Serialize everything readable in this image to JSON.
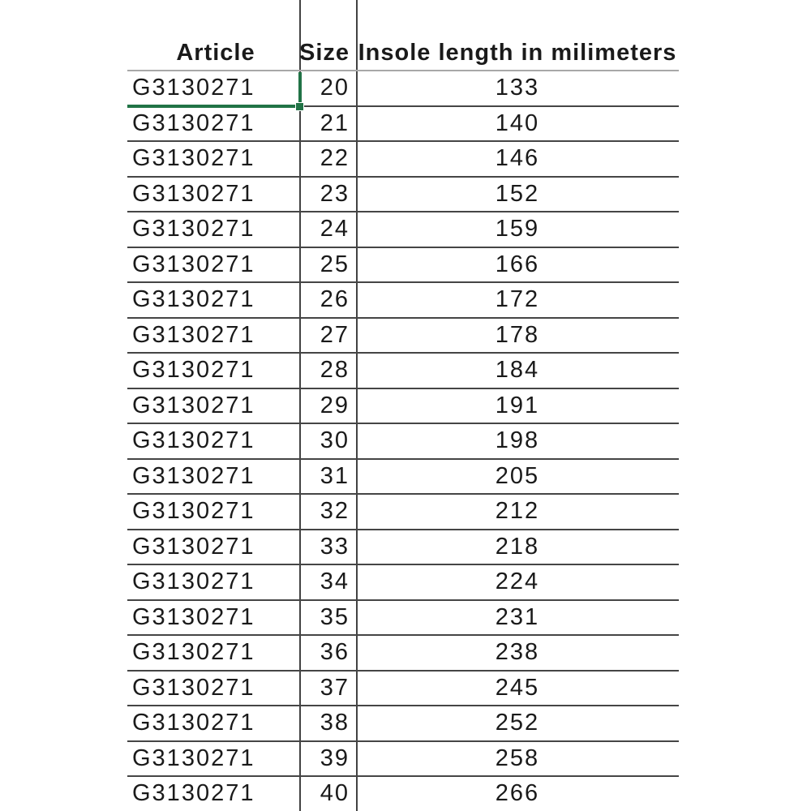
{
  "colors": {
    "selection_green": "#217346",
    "row_border": "#454545",
    "header_border": "#a8a8a8",
    "text": "#1a1a1a"
  },
  "table": {
    "headers": {
      "article": "Article",
      "size": "Size",
      "insole": "Insole length in milimeters"
    },
    "rows": [
      {
        "article": "G3130271",
        "size": "20",
        "insole": "133"
      },
      {
        "article": "G3130271",
        "size": "21",
        "insole": "140"
      },
      {
        "article": "G3130271",
        "size": "22",
        "insole": "146"
      },
      {
        "article": "G3130271",
        "size": "23",
        "insole": "152"
      },
      {
        "article": "G3130271",
        "size": "24",
        "insole": "159"
      },
      {
        "article": "G3130271",
        "size": "25",
        "insole": "166"
      },
      {
        "article": "G3130271",
        "size": "26",
        "insole": "172"
      },
      {
        "article": "G3130271",
        "size": "27",
        "insole": "178"
      },
      {
        "article": "G3130271",
        "size": "28",
        "insole": "184"
      },
      {
        "article": "G3130271",
        "size": "29",
        "insole": "191"
      },
      {
        "article": "G3130271",
        "size": "30",
        "insole": "198"
      },
      {
        "article": "G3130271",
        "size": "31",
        "insole": "205"
      },
      {
        "article": "G3130271",
        "size": "32",
        "insole": "212"
      },
      {
        "article": "G3130271",
        "size": "33",
        "insole": "218"
      },
      {
        "article": "G3130271",
        "size": "34",
        "insole": "224"
      },
      {
        "article": "G3130271",
        "size": "35",
        "insole": "231"
      },
      {
        "article": "G3130271",
        "size": "36",
        "insole": "238"
      },
      {
        "article": "G3130271",
        "size": "37",
        "insole": "245"
      },
      {
        "article": "G3130271",
        "size": "38",
        "insole": "252"
      },
      {
        "article": "G3130271",
        "size": "39",
        "insole": "258"
      },
      {
        "article": "G3130271",
        "size": "40",
        "insole": "266"
      }
    ],
    "selection": {
      "row_index": 0,
      "column": "article",
      "selected_value": "G3130271"
    }
  }
}
